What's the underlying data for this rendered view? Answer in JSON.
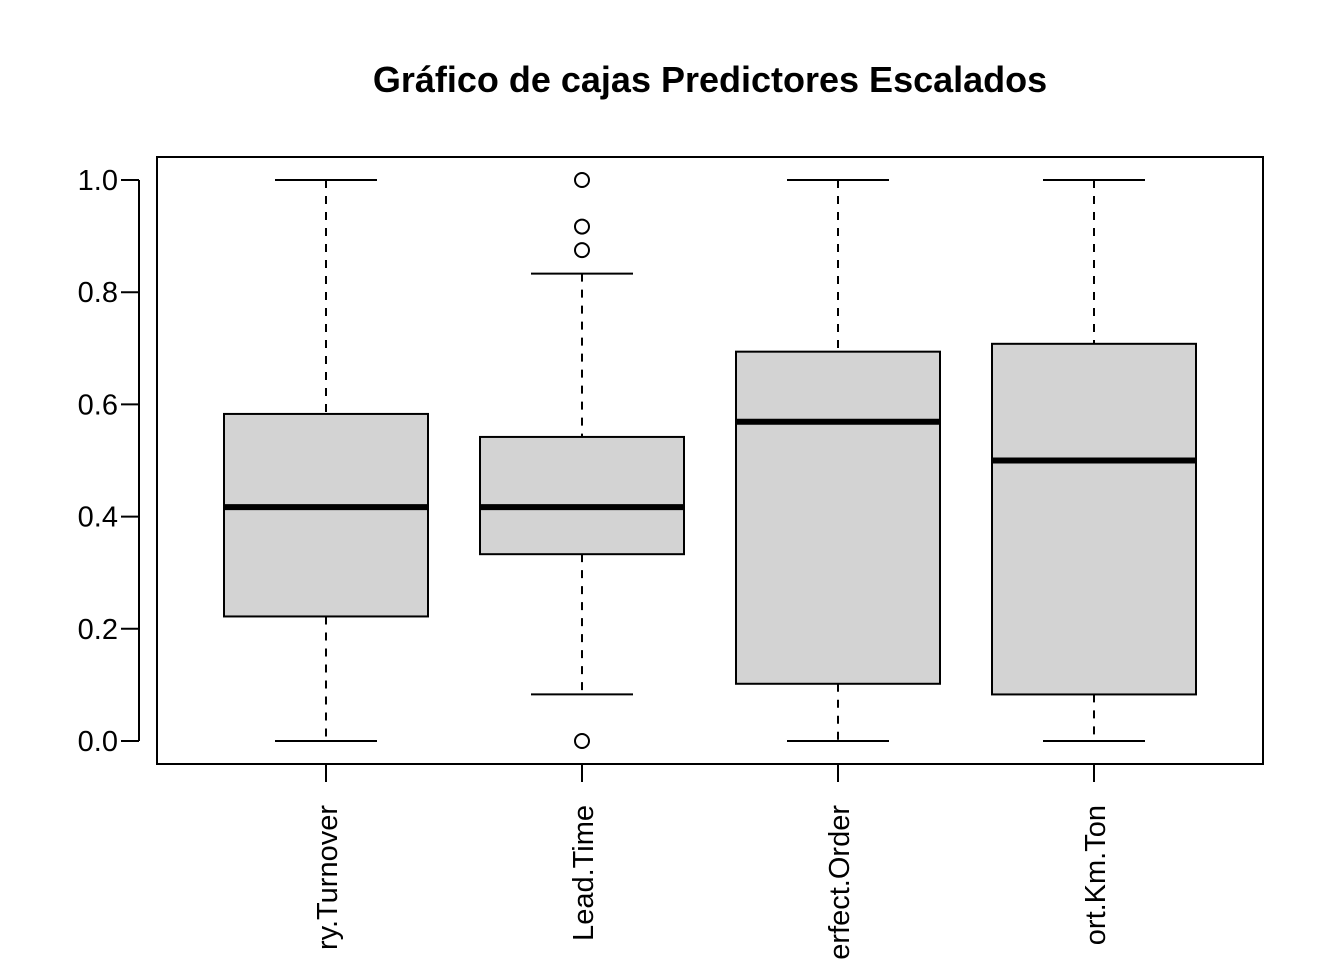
{
  "chart_data": {
    "type": "boxplot",
    "title": "Gráfico de cajas Predictores Escalados",
    "xlabel": "",
    "ylabel": "",
    "ylim": [
      0,
      1
    ],
    "yticks": [
      "0.0",
      "0.2",
      "0.4",
      "0.6",
      "0.8",
      "1.0"
    ],
    "ytick_values": [
      0,
      0.2,
      0.4,
      0.6,
      0.8,
      1.0
    ],
    "x_label_orientation": "vertical",
    "grid": false,
    "box_fill": "#d3d3d3",
    "categories": [
      "ry.Turnover",
      "Lead.Time",
      "erfect.Order",
      "ort.Km.Ton"
    ],
    "boxes": [
      {
        "label": "ry.Turnover",
        "whisker_low": 0.0,
        "q1": 0.222,
        "median": 0.417,
        "q3": 0.583,
        "whisker_high": 1.0,
        "outliers": []
      },
      {
        "label": "Lead.Time",
        "whisker_low": 0.083,
        "q1": 0.333,
        "median": 0.417,
        "q3": 0.542,
        "whisker_high": 0.833,
        "outliers": [
          0.0,
          0.875,
          0.917,
          1.0
        ]
      },
      {
        "label": "erfect.Order",
        "whisker_low": 0.0,
        "q1": 0.102,
        "median": 0.569,
        "q3": 0.694,
        "whisker_high": 1.0,
        "outliers": []
      },
      {
        "label": "ort.Km.Ton",
        "whisker_low": 0.0,
        "q1": 0.083,
        "median": 0.5,
        "q3": 0.708,
        "whisker_high": 1.0,
        "outliers": []
      }
    ]
  }
}
